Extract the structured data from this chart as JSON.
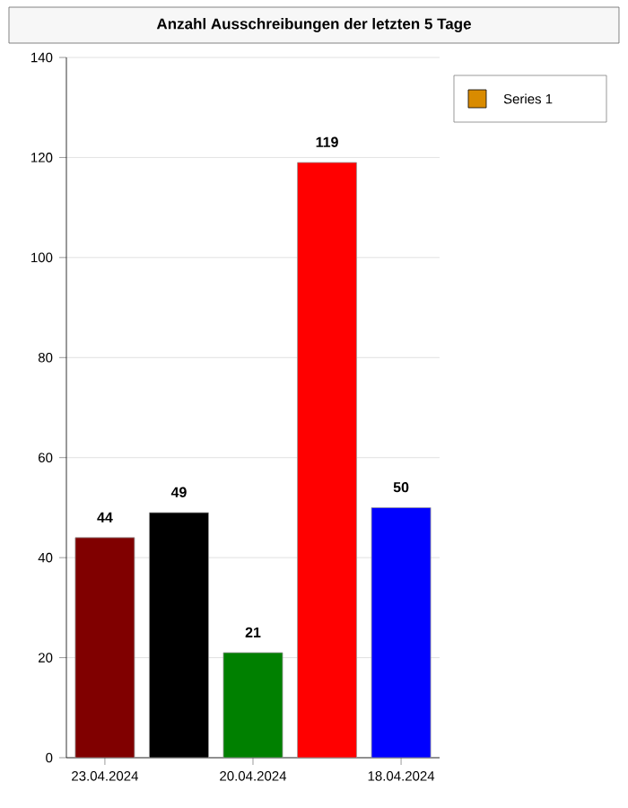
{
  "chart_data": {
    "type": "bar",
    "title": "Anzahl Ausschreibungen der letzten 5 Tage",
    "categories": [
      "23.04.2024",
      null,
      "20.04.2024",
      null,
      "18.04.2024"
    ],
    "series": [
      {
        "name": "Series 1",
        "color": "#d98b00",
        "colors": [
          "#800000",
          "#000000",
          "#008000",
          "#ff0000",
          "#0000ff"
        ],
        "values": [
          44,
          49,
          21,
          119,
          50
        ]
      }
    ],
    "ylim": [
      0,
      140
    ],
    "yticks": [
      0,
      20,
      40,
      60,
      80,
      100,
      120,
      140
    ],
    "grid": "y",
    "legend": "top right",
    "data_labels": true
  }
}
